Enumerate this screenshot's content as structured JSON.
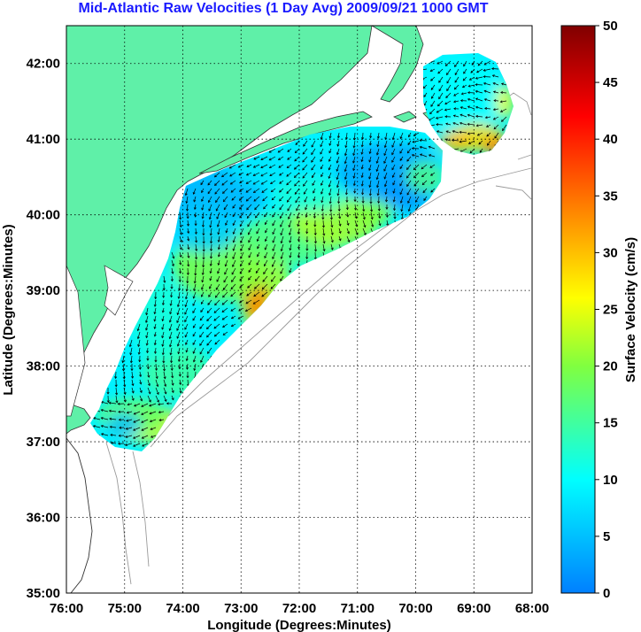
{
  "title": "Mid-Atlantic Raw Velocities (1 Day Avg) 2009/09/21 1000 GMT",
  "map": {
    "xlabel": "Longitude (Degrees:Minutes)",
    "ylabel": "Latitude (Degrees:Minutes)",
    "lon_ticks": [
      "76:00",
      "75:00",
      "74:00",
      "73:00",
      "72:00",
      "71:00",
      "70:00",
      "69:00",
      "68:00"
    ],
    "lat_ticks": [
      "42:00",
      "41:00",
      "40:00",
      "39:00",
      "38:00",
      "37:00",
      "36:00",
      "35:00"
    ],
    "lon_range": [
      -76,
      -68
    ],
    "lat_range": [
      35,
      42.5
    ],
    "land_color": "#5ff0a8",
    "grid": "dotted"
  },
  "colorbar": {
    "label": "Surface Velocity (cm/s)",
    "ticks": [
      "50",
      "45",
      "40",
      "35",
      "30",
      "25",
      "20",
      "15",
      "10",
      "5",
      "0"
    ],
    "range": [
      0,
      50
    ],
    "colors": [
      "#0080ff",
      "#00ffff",
      "#80ff40",
      "#ffff00",
      "#ff8000",
      "#ff0000",
      "#800000"
    ]
  }
}
